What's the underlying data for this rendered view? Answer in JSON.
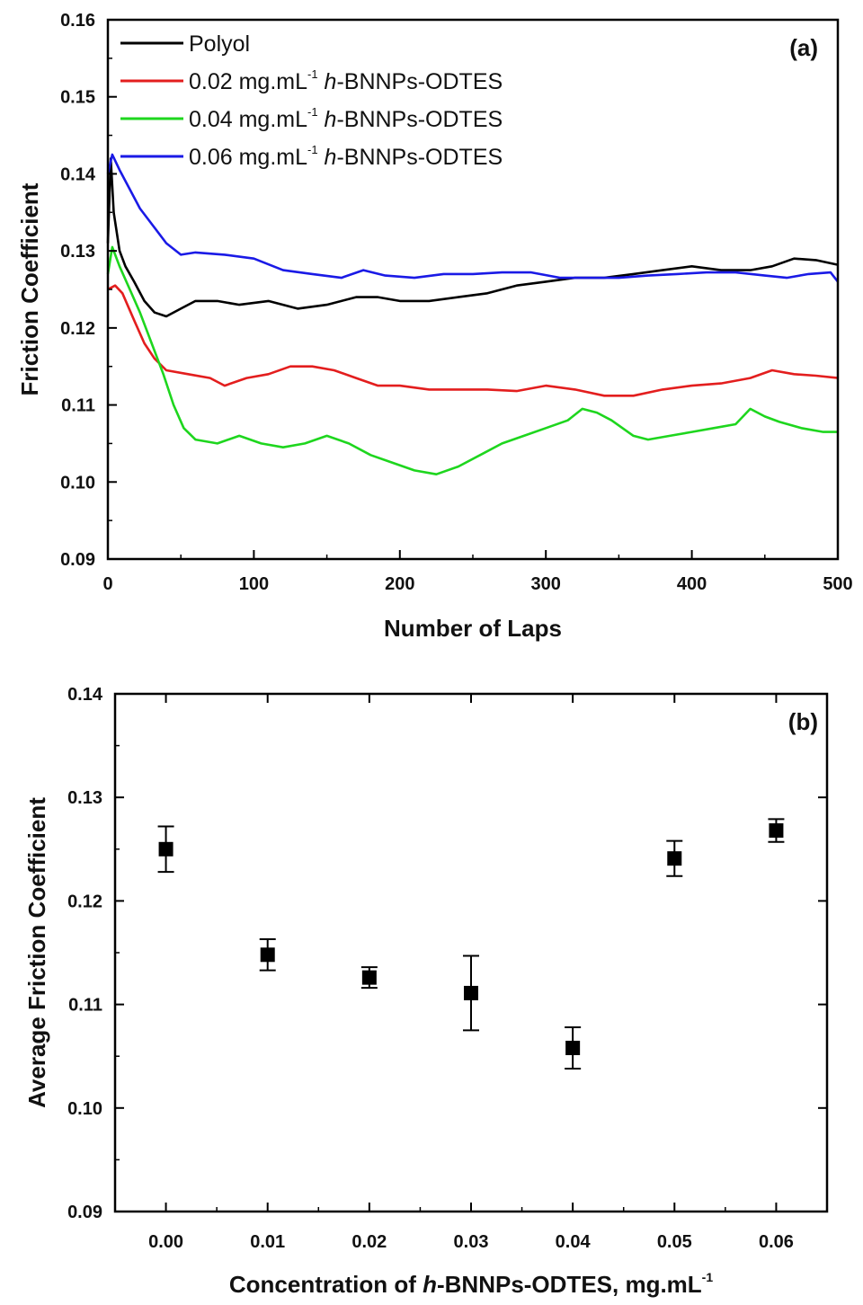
{
  "chart_data": [
    {
      "type": "line",
      "panel_label": "(a)",
      "xlabel": "Number of Laps",
      "ylabel": "Friction Coefficient",
      "xlim": [
        0,
        500
      ],
      "ylim": [
        0.09,
        0.16
      ],
      "xticks": [
        0,
        100,
        200,
        300,
        400,
        500
      ],
      "xtick_labels": [
        "0",
        "100",
        "200",
        "300",
        "400",
        "500"
      ],
      "yticks": [
        0.09,
        0.1,
        0.11,
        0.12,
        0.13,
        0.14,
        0.15,
        0.16
      ],
      "ytick_labels": [
        "0.09",
        "0.10",
        "0.11",
        "0.12",
        "0.13",
        "0.14",
        "0.15",
        "0.16"
      ],
      "grid": false,
      "legend_position": "top-left",
      "series": [
        {
          "name": "Polyol",
          "legend_main": "Polyol",
          "legend_sup": "",
          "legend_italic": "",
          "legend_rest": "",
          "color": "#000000",
          "points": [
            [
              0,
              0.131
            ],
            [
              2,
              0.142
            ],
            [
              4,
              0.135
            ],
            [
              8,
              0.13
            ],
            [
              12,
              0.128
            ],
            [
              18,
              0.126
            ],
            [
              25,
              0.1235
            ],
            [
              32,
              0.122
            ],
            [
              40,
              0.1215
            ],
            [
              50,
              0.1225
            ],
            [
              60,
              0.1235
            ],
            [
              75,
              0.1235
            ],
            [
              90,
              0.123
            ],
            [
              110,
              0.1235
            ],
            [
              130,
              0.1225
            ],
            [
              150,
              0.123
            ],
            [
              170,
              0.124
            ],
            [
              185,
              0.124
            ],
            [
              200,
              0.1235
            ],
            [
              220,
              0.1235
            ],
            [
              240,
              0.124
            ],
            [
              260,
              0.1245
            ],
            [
              280,
              0.1255
            ],
            [
              300,
              0.126
            ],
            [
              320,
              0.1265
            ],
            [
              340,
              0.1265
            ],
            [
              360,
              0.127
            ],
            [
              380,
              0.1275
            ],
            [
              400,
              0.128
            ],
            [
              420,
              0.1275
            ],
            [
              440,
              0.1275
            ],
            [
              455,
              0.128
            ],
            [
              470,
              0.129
            ],
            [
              485,
              0.1288
            ],
            [
              500,
              0.1282
            ]
          ]
        },
        {
          "name": "0.02 mg.mL-1 h-BNNPs-ODTES",
          "legend_main": "0.02 mg.mL",
          "legend_sup": "-1",
          "legend_italic": "h",
          "legend_rest": "-BNNPs-ODTES",
          "color": "#e31e1e",
          "points": [
            [
              0,
              0.125
            ],
            [
              5,
              0.1255
            ],
            [
              10,
              0.1245
            ],
            [
              18,
              0.121
            ],
            [
              25,
              0.118
            ],
            [
              32,
              0.116
            ],
            [
              40,
              0.1145
            ],
            [
              55,
              0.114
            ],
            [
              70,
              0.1135
            ],
            [
              80,
              0.1125
            ],
            [
              95,
              0.1135
            ],
            [
              110,
              0.114
            ],
            [
              125,
              0.115
            ],
            [
              140,
              0.115
            ],
            [
              155,
              0.1145
            ],
            [
              170,
              0.1135
            ],
            [
              185,
              0.1125
            ],
            [
              200,
              0.1125
            ],
            [
              220,
              0.112
            ],
            [
              240,
              0.112
            ],
            [
              260,
              0.112
            ],
            [
              280,
              0.1118
            ],
            [
              300,
              0.1125
            ],
            [
              320,
              0.112
            ],
            [
              340,
              0.1112
            ],
            [
              360,
              0.1112
            ],
            [
              380,
              0.112
            ],
            [
              400,
              0.1125
            ],
            [
              420,
              0.1128
            ],
            [
              440,
              0.1135
            ],
            [
              455,
              0.1145
            ],
            [
              470,
              0.114
            ],
            [
              485,
              0.1138
            ],
            [
              500,
              0.1135
            ]
          ]
        },
        {
          "name": "0.04 mg.mL-1 h-BNNPs-ODTES",
          "legend_main": "0.04 mg.mL",
          "legend_sup": "-1",
          "legend_italic": "h",
          "legend_rest": "-BNNPs-ODTES",
          "color": "#1ed61e",
          "points": [
            [
              0,
              0.127
            ],
            [
              3,
              0.1305
            ],
            [
              8,
              0.128
            ],
            [
              15,
              0.125
            ],
            [
              22,
              0.122
            ],
            [
              30,
              0.118
            ],
            [
              38,
              0.114
            ],
            [
              45,
              0.11
            ],
            [
              52,
              0.107
            ],
            [
              60,
              0.1055
            ],
            [
              75,
              0.105
            ],
            [
              90,
              0.106
            ],
            [
              105,
              0.105
            ],
            [
              120,
              0.1045
            ],
            [
              135,
              0.105
            ],
            [
              150,
              0.106
            ],
            [
              165,
              0.105
            ],
            [
              180,
              0.1035
            ],
            [
              195,
              0.1025
            ],
            [
              210,
              0.1015
            ],
            [
              225,
              0.101
            ],
            [
              240,
              0.102
            ],
            [
              255,
              0.1035
            ],
            [
              270,
              0.105
            ],
            [
              285,
              0.106
            ],
            [
              300,
              0.107
            ],
            [
              315,
              0.108
            ],
            [
              325,
              0.1095
            ],
            [
              335,
              0.109
            ],
            [
              345,
              0.108
            ],
            [
              360,
              0.106
            ],
            [
              370,
              0.1055
            ],
            [
              385,
              0.106
            ],
            [
              400,
              0.1065
            ],
            [
              415,
              0.107
            ],
            [
              430,
              0.1075
            ],
            [
              440,
              0.1095
            ],
            [
              450,
              0.1085
            ],
            [
              460,
              0.1078
            ],
            [
              475,
              0.107
            ],
            [
              490,
              0.1065
            ],
            [
              500,
              0.1065
            ]
          ]
        },
        {
          "name": "0.06 mg.mL-1 h-BNNPs-ODTES",
          "legend_main": "0.06 mg.mL",
          "legend_sup": "-1",
          "legend_italic": "h",
          "legend_rest": "-BNNPs-ODTES",
          "color": "#1a1ae6",
          "points": [
            [
              0,
              0.14
            ],
            [
              3,
              0.1425
            ],
            [
              8,
              0.1405
            ],
            [
              15,
              0.138
            ],
            [
              22,
              0.1355
            ],
            [
              30,
              0.1335
            ],
            [
              40,
              0.131
            ],
            [
              50,
              0.1295
            ],
            [
              60,
              0.1298
            ],
            [
              80,
              0.1295
            ],
            [
              100,
              0.129
            ],
            [
              120,
              0.1275
            ],
            [
              140,
              0.127
            ],
            [
              160,
              0.1265
            ],
            [
              175,
              0.1275
            ],
            [
              190,
              0.1268
            ],
            [
              210,
              0.1265
            ],
            [
              230,
              0.127
            ],
            [
              250,
              0.127
            ],
            [
              270,
              0.1272
            ],
            [
              290,
              0.1272
            ],
            [
              310,
              0.1265
            ],
            [
              330,
              0.1265
            ],
            [
              350,
              0.1265
            ],
            [
              370,
              0.1268
            ],
            [
              390,
              0.127
            ],
            [
              410,
              0.1272
            ],
            [
              430,
              0.1272
            ],
            [
              450,
              0.1268
            ],
            [
              465,
              0.1265
            ],
            [
              480,
              0.127
            ],
            [
              495,
              0.1272
            ],
            [
              500,
              0.126
            ]
          ]
        }
      ]
    },
    {
      "type": "scatter",
      "panel_label": "(b)",
      "xlabel_main": "Concentration of ",
      "xlabel_italic": "h",
      "xlabel_rest": "-BNNPs-ODTES, mg.mL",
      "xlabel_sup": "-1",
      "ylabel": "Average Friction Coefficient",
      "xlim": [
        -0.005,
        0.065
      ],
      "ylim": [
        0.09,
        0.14
      ],
      "xticks": [
        0.0,
        0.01,
        0.02,
        0.03,
        0.04,
        0.05,
        0.06
      ],
      "xtick_labels": [
        "0.00",
        "0.01",
        "0.02",
        "0.03",
        "0.04",
        "0.05",
        "0.06"
      ],
      "yticks": [
        0.09,
        0.1,
        0.11,
        0.12,
        0.13,
        0.14
      ],
      "ytick_labels": [
        "0.09",
        "0.10",
        "0.11",
        "0.12",
        "0.13",
        "0.14"
      ],
      "grid": false,
      "marker_color": "#000000",
      "points": [
        {
          "x": 0.0,
          "y": 0.125,
          "err": 0.0022
        },
        {
          "x": 0.01,
          "y": 0.1148,
          "err": 0.0015
        },
        {
          "x": 0.02,
          "y": 0.1126,
          "err": 0.001
        },
        {
          "x": 0.03,
          "y": 0.1111,
          "err": 0.0036
        },
        {
          "x": 0.04,
          "y": 0.1058,
          "err": 0.002
        },
        {
          "x": 0.05,
          "y": 0.1241,
          "err": 0.0017
        },
        {
          "x": 0.06,
          "y": 0.1268,
          "err": 0.0011
        }
      ]
    }
  ]
}
